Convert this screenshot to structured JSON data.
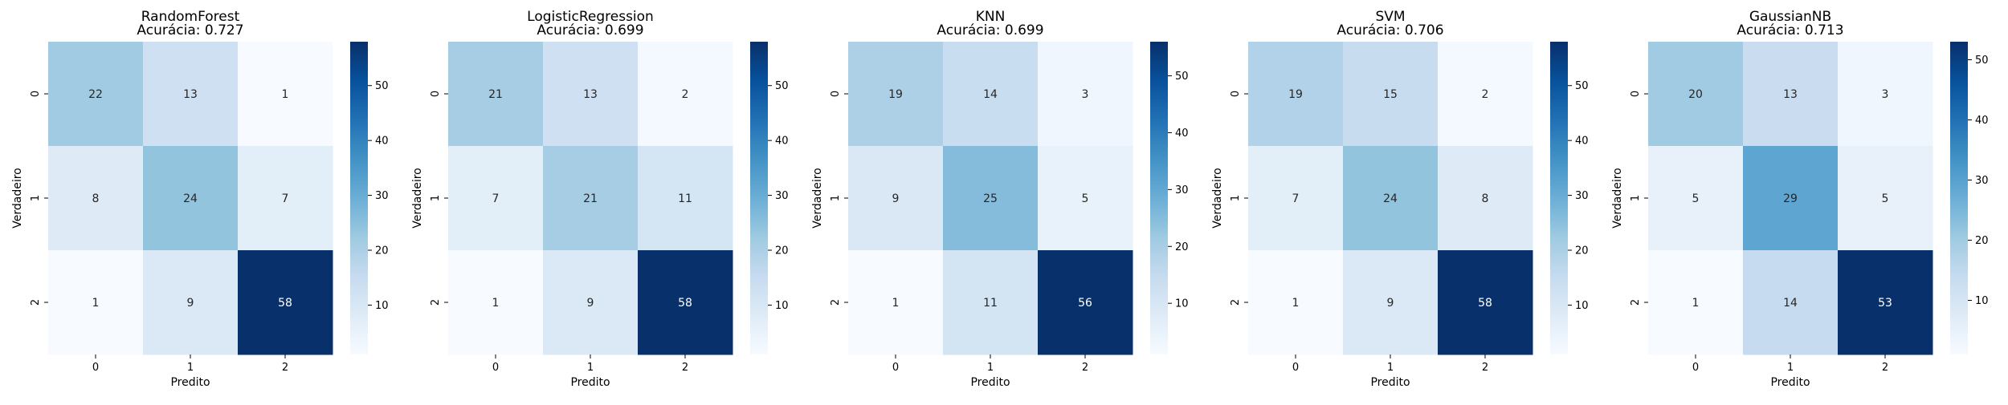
{
  "colors": {
    "scale": [
      "#f7fbff",
      "#deebf7",
      "#c6dbef",
      "#9ecae1",
      "#6baed6",
      "#4292c6",
      "#2171b5",
      "#08519c",
      "#08306b"
    ],
    "dark_text": "#262626",
    "light_text": "#ffffff"
  },
  "chart_data": [
    {
      "type": "heatmap",
      "title": "RandomForest",
      "subtitle": "Acurácia: 0.727",
      "xlabel": "Predito",
      "ylabel": "Verdadeiro",
      "x_categories": [
        "0",
        "1",
        "2"
      ],
      "y_categories": [
        "0",
        "1",
        "2"
      ],
      "values": [
        [
          22,
          13,
          1
        ],
        [
          8,
          24,
          7
        ],
        [
          1,
          9,
          58
        ]
      ],
      "colorbar": {
        "ticks": [
          10,
          20,
          30,
          40,
          50
        ],
        "range": [
          1,
          58
        ]
      }
    },
    {
      "type": "heatmap",
      "title": "LogisticRegression",
      "subtitle": "Acurácia: 0.699",
      "xlabel": "Predito",
      "ylabel": "Verdadeiro",
      "x_categories": [
        "0",
        "1",
        "2"
      ],
      "y_categories": [
        "0",
        "1",
        "2"
      ],
      "values": [
        [
          21,
          13,
          2
        ],
        [
          7,
          21,
          11
        ],
        [
          1,
          9,
          58
        ]
      ],
      "colorbar": {
        "ticks": [
          10,
          20,
          30,
          40,
          50
        ],
        "range": [
          1,
          58
        ]
      }
    },
    {
      "type": "heatmap",
      "title": "KNN",
      "subtitle": "Acurácia: 0.699",
      "xlabel": "Predito",
      "ylabel": "Verdadeiro",
      "x_categories": [
        "0",
        "1",
        "2"
      ],
      "y_categories": [
        "0",
        "1",
        "2"
      ],
      "values": [
        [
          19,
          14,
          3
        ],
        [
          9,
          25,
          5
        ],
        [
          1,
          11,
          56
        ]
      ],
      "colorbar": {
        "ticks": [
          10,
          20,
          30,
          40,
          50
        ],
        "range": [
          1,
          56
        ]
      }
    },
    {
      "type": "heatmap",
      "title": "SVM",
      "subtitle": "Acurácia: 0.706",
      "xlabel": "Predito",
      "ylabel": "Verdadeiro",
      "x_categories": [
        "0",
        "1",
        "2"
      ],
      "y_categories": [
        "0",
        "1",
        "2"
      ],
      "values": [
        [
          19,
          15,
          2
        ],
        [
          7,
          24,
          8
        ],
        [
          1,
          9,
          58
        ]
      ],
      "colorbar": {
        "ticks": [
          10,
          20,
          30,
          40,
          50
        ],
        "range": [
          1,
          58
        ]
      }
    },
    {
      "type": "heatmap",
      "title": "GaussianNB",
      "subtitle": "Acurácia: 0.713",
      "xlabel": "Predito",
      "ylabel": "Verdadeiro",
      "x_categories": [
        "0",
        "1",
        "2"
      ],
      "y_categories": [
        "0",
        "1",
        "2"
      ],
      "values": [
        [
          20,
          13,
          3
        ],
        [
          5,
          29,
          5
        ],
        [
          1,
          14,
          53
        ]
      ],
      "colorbar": {
        "ticks": [
          10,
          20,
          30,
          40,
          50
        ],
        "range": [
          1,
          53
        ]
      }
    }
  ]
}
